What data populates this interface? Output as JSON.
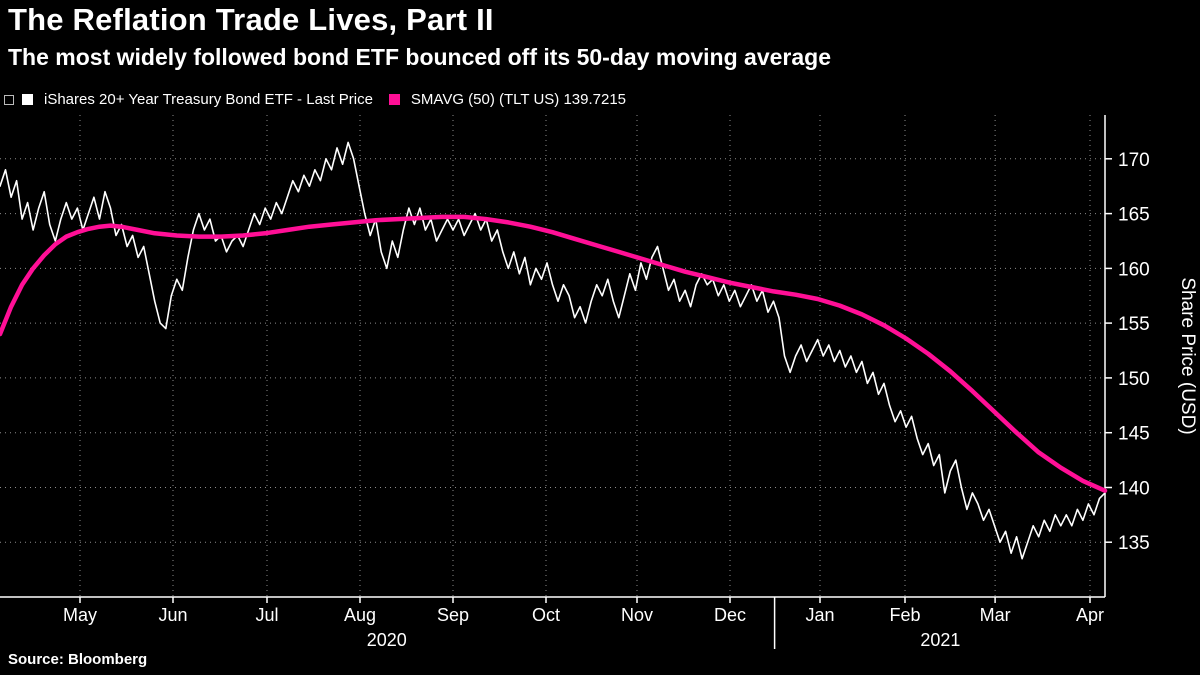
{
  "header": {
    "title": "The Reflation Trade Lives, Part II",
    "subtitle": "The most widely followed bond ETF bounced off its 50-day moving average"
  },
  "legend": {
    "price_label": "iShares 20+ Year Treasury Bond ETF - Last Price",
    "price_color": "#ffffff",
    "smavg_label": "SMAVG (50) (TLT US) 139.7215",
    "smavg_color": "#ff0f96"
  },
  "footer": {
    "source": "Source: Bloomberg"
  },
  "chart_data": {
    "type": "line",
    "title": "The Reflation Trade Lives, Part II",
    "subtitle": "The most widely followed bond ETF bounced off its 50-day moving average",
    "ylabel": "Share Price (USD)",
    "xlabel": "",
    "ylim": [
      130,
      174
    ],
    "yticks": [
      135,
      140,
      145,
      150,
      155,
      160,
      165,
      170
    ],
    "grid": "dotted",
    "legend_position": "top",
    "xticks": [
      {
        "label": "May",
        "f": 0.0724
      },
      {
        "label": "Jun",
        "f": 0.1566
      },
      {
        "label": "Jul",
        "f": 0.2416
      },
      {
        "label": "Aug",
        "f": 0.3258
      },
      {
        "label": "Sep",
        "f": 0.41
      },
      {
        "label": "Oct",
        "f": 0.4941
      },
      {
        "label": "Nov",
        "f": 0.5765
      },
      {
        "label": "Dec",
        "f": 0.6606
      },
      {
        "label": "Jan",
        "f": 0.7421
      },
      {
        "label": "Feb",
        "f": 0.819
      },
      {
        "label": "Mar",
        "f": 0.9005
      },
      {
        "label": "Apr",
        "f": 0.9864
      }
    ],
    "year_labels": [
      {
        "label": "2020",
        "f": 0.35
      },
      {
        "label": "2021",
        "f": 0.851
      }
    ],
    "year_dividers": [
      0.701
    ],
    "series": [
      {
        "id": "tlt-price",
        "name": "iShares 20+ Year Treasury Bond ETF - Last Price",
        "color": "#ffffff",
        "width": 1.6,
        "points": [
          [
            0.0,
            167.5
          ],
          [
            0.005,
            169.0
          ],
          [
            0.01,
            166.5
          ],
          [
            0.015,
            168.0
          ],
          [
            0.02,
            164.5
          ],
          [
            0.025,
            166.0
          ],
          [
            0.03,
            163.5
          ],
          [
            0.035,
            165.5
          ],
          [
            0.04,
            167.0
          ],
          [
            0.045,
            164.0
          ],
          [
            0.05,
            162.5
          ],
          [
            0.055,
            164.5
          ],
          [
            0.06,
            166.0
          ],
          [
            0.065,
            164.5
          ],
          [
            0.07,
            165.5
          ],
          [
            0.075,
            163.5
          ],
          [
            0.08,
            165.0
          ],
          [
            0.085,
            166.5
          ],
          [
            0.09,
            164.5
          ],
          [
            0.095,
            167.0
          ],
          [
            0.1,
            165.5
          ],
          [
            0.105,
            163.0
          ],
          [
            0.11,
            164.0
          ],
          [
            0.115,
            162.0
          ],
          [
            0.12,
            163.0
          ],
          [
            0.125,
            161.0
          ],
          [
            0.13,
            162.0
          ],
          [
            0.135,
            159.5
          ],
          [
            0.14,
            157.0
          ],
          [
            0.145,
            155.0
          ],
          [
            0.15,
            154.5
          ],
          [
            0.155,
            157.5
          ],
          [
            0.16,
            159.0
          ],
          [
            0.165,
            158.0
          ],
          [
            0.17,
            161.0
          ],
          [
            0.175,
            163.5
          ],
          [
            0.18,
            165.0
          ],
          [
            0.185,
            163.5
          ],
          [
            0.19,
            164.5
          ],
          [
            0.195,
            162.5
          ],
          [
            0.2,
            163.0
          ],
          [
            0.205,
            161.5
          ],
          [
            0.21,
            162.5
          ],
          [
            0.215,
            163.0
          ],
          [
            0.22,
            162.0
          ],
          [
            0.225,
            163.5
          ],
          [
            0.23,
            165.0
          ],
          [
            0.235,
            164.0
          ],
          [
            0.24,
            165.5
          ],
          [
            0.245,
            164.5
          ],
          [
            0.25,
            166.0
          ],
          [
            0.255,
            165.0
          ],
          [
            0.26,
            166.5
          ],
          [
            0.265,
            168.0
          ],
          [
            0.27,
            167.0
          ],
          [
            0.275,
            168.5
          ],
          [
            0.28,
            167.5
          ],
          [
            0.285,
            169.0
          ],
          [
            0.29,
            168.0
          ],
          [
            0.295,
            170.0
          ],
          [
            0.3,
            169.0
          ],
          [
            0.305,
            171.0
          ],
          [
            0.31,
            169.5
          ],
          [
            0.315,
            171.5
          ],
          [
            0.32,
            170.0
          ],
          [
            0.325,
            167.5
          ],
          [
            0.33,
            165.0
          ],
          [
            0.335,
            163.0
          ],
          [
            0.34,
            164.5
          ],
          [
            0.345,
            161.5
          ],
          [
            0.35,
            160.0
          ],
          [
            0.355,
            162.5
          ],
          [
            0.36,
            161.0
          ],
          [
            0.365,
            163.5
          ],
          [
            0.37,
            165.5
          ],
          [
            0.375,
            164.0
          ],
          [
            0.38,
            165.5
          ],
          [
            0.385,
            163.5
          ],
          [
            0.39,
            164.5
          ],
          [
            0.395,
            162.5
          ],
          [
            0.4,
            163.5
          ],
          [
            0.405,
            164.5
          ],
          [
            0.41,
            163.5
          ],
          [
            0.415,
            164.5
          ],
          [
            0.42,
            163.0
          ],
          [
            0.425,
            164.0
          ],
          [
            0.43,
            165.0
          ],
          [
            0.435,
            163.5
          ],
          [
            0.44,
            164.5
          ],
          [
            0.445,
            162.5
          ],
          [
            0.45,
            163.5
          ],
          [
            0.455,
            161.5
          ],
          [
            0.46,
            160.0
          ],
          [
            0.465,
            161.5
          ],
          [
            0.47,
            159.5
          ],
          [
            0.475,
            161.0
          ],
          [
            0.48,
            158.5
          ],
          [
            0.485,
            160.0
          ],
          [
            0.49,
            159.0
          ],
          [
            0.495,
            160.5
          ],
          [
            0.5,
            158.5
          ],
          [
            0.505,
            157.0
          ],
          [
            0.51,
            158.5
          ],
          [
            0.515,
            157.5
          ],
          [
            0.52,
            155.5
          ],
          [
            0.525,
            156.5
          ],
          [
            0.53,
            155.0
          ],
          [
            0.535,
            157.0
          ],
          [
            0.54,
            158.5
          ],
          [
            0.545,
            157.5
          ],
          [
            0.55,
            159.0
          ],
          [
            0.555,
            157.0
          ],
          [
            0.56,
            155.5
          ],
          [
            0.565,
            157.5
          ],
          [
            0.57,
            159.5
          ],
          [
            0.575,
            158.0
          ],
          [
            0.58,
            160.5
          ],
          [
            0.585,
            159.0
          ],
          [
            0.59,
            161.0
          ],
          [
            0.595,
            162.0
          ],
          [
            0.6,
            160.0
          ],
          [
            0.605,
            158.0
          ],
          [
            0.61,
            159.0
          ],
          [
            0.615,
            157.0
          ],
          [
            0.62,
            158.0
          ],
          [
            0.625,
            156.5
          ],
          [
            0.63,
            158.5
          ],
          [
            0.635,
            159.5
          ],
          [
            0.64,
            158.5
          ],
          [
            0.645,
            159.0
          ],
          [
            0.65,
            157.5
          ],
          [
            0.655,
            158.5
          ],
          [
            0.66,
            157.0
          ],
          [
            0.665,
            158.0
          ],
          [
            0.67,
            156.5
          ],
          [
            0.675,
            157.5
          ],
          [
            0.68,
            158.5
          ],
          [
            0.685,
            157.0
          ],
          [
            0.69,
            158.0
          ],
          [
            0.695,
            156.0
          ],
          [
            0.7,
            157.0
          ],
          [
            0.705,
            155.5
          ],
          [
            0.71,
            152.0
          ],
          [
            0.715,
            150.5
          ],
          [
            0.72,
            152.0
          ],
          [
            0.725,
            153.0
          ],
          [
            0.73,
            151.5
          ],
          [
            0.735,
            152.5
          ],
          [
            0.74,
            153.5
          ],
          [
            0.745,
            152.0
          ],
          [
            0.75,
            153.0
          ],
          [
            0.755,
            151.5
          ],
          [
            0.76,
            152.5
          ],
          [
            0.765,
            151.0
          ],
          [
            0.77,
            152.0
          ],
          [
            0.775,
            150.5
          ],
          [
            0.78,
            151.5
          ],
          [
            0.785,
            149.5
          ],
          [
            0.79,
            150.5
          ],
          [
            0.795,
            148.5
          ],
          [
            0.8,
            149.5
          ],
          [
            0.805,
            147.5
          ],
          [
            0.81,
            146.0
          ],
          [
            0.815,
            147.0
          ],
          [
            0.82,
            145.5
          ],
          [
            0.825,
            146.5
          ],
          [
            0.83,
            144.5
          ],
          [
            0.835,
            143.0
          ],
          [
            0.84,
            144.0
          ],
          [
            0.845,
            142.0
          ],
          [
            0.85,
            143.0
          ],
          [
            0.855,
            139.5
          ],
          [
            0.86,
            141.5
          ],
          [
            0.865,
            142.5
          ],
          [
            0.87,
            140.0
          ],
          [
            0.875,
            138.0
          ],
          [
            0.88,
            139.5
          ],
          [
            0.885,
            138.5
          ],
          [
            0.89,
            137.0
          ],
          [
            0.895,
            138.0
          ],
          [
            0.9,
            136.5
          ],
          [
            0.905,
            135.0
          ],
          [
            0.91,
            136.0
          ],
          [
            0.915,
            134.0
          ],
          [
            0.92,
            135.5
          ],
          [
            0.925,
            133.5
          ],
          [
            0.93,
            135.0
          ],
          [
            0.935,
            136.5
          ],
          [
            0.94,
            135.5
          ],
          [
            0.945,
            137.0
          ],
          [
            0.95,
            136.0
          ],
          [
            0.955,
            137.5
          ],
          [
            0.96,
            136.5
          ],
          [
            0.965,
            137.5
          ],
          [
            0.97,
            136.5
          ],
          [
            0.975,
            138.0
          ],
          [
            0.98,
            137.0
          ],
          [
            0.985,
            138.5
          ],
          [
            0.99,
            137.5
          ],
          [
            0.995,
            139.0
          ],
          [
            1.0,
            139.5
          ]
        ]
      },
      {
        "id": "smavg-50",
        "name": "SMAVG (50) (TLT US)",
        "last_value": 139.7215,
        "color": "#ff0f96",
        "width": 4.5,
        "points": [
          [
            0.0,
            154.0
          ],
          [
            0.01,
            156.5
          ],
          [
            0.02,
            158.5
          ],
          [
            0.03,
            160.0
          ],
          [
            0.04,
            161.2
          ],
          [
            0.05,
            162.2
          ],
          [
            0.06,
            162.9
          ],
          [
            0.07,
            163.3
          ],
          [
            0.08,
            163.6
          ],
          [
            0.09,
            163.8
          ],
          [
            0.1,
            163.9
          ],
          [
            0.11,
            163.8
          ],
          [
            0.125,
            163.5
          ],
          [
            0.14,
            163.2
          ],
          [
            0.16,
            163.0
          ],
          [
            0.18,
            162.9
          ],
          [
            0.2,
            162.9
          ],
          [
            0.22,
            163.0
          ],
          [
            0.24,
            163.2
          ],
          [
            0.26,
            163.5
          ],
          [
            0.28,
            163.8
          ],
          [
            0.3,
            164.0
          ],
          [
            0.32,
            164.2
          ],
          [
            0.34,
            164.4
          ],
          [
            0.36,
            164.5
          ],
          [
            0.38,
            164.6
          ],
          [
            0.4,
            164.7
          ],
          [
            0.42,
            164.7
          ],
          [
            0.44,
            164.5
          ],
          [
            0.46,
            164.2
          ],
          [
            0.48,
            163.8
          ],
          [
            0.5,
            163.3
          ],
          [
            0.52,
            162.7
          ],
          [
            0.54,
            162.1
          ],
          [
            0.56,
            161.5
          ],
          [
            0.58,
            160.9
          ],
          [
            0.6,
            160.3
          ],
          [
            0.62,
            159.7
          ],
          [
            0.64,
            159.2
          ],
          [
            0.66,
            158.7
          ],
          [
            0.68,
            158.3
          ],
          [
            0.7,
            157.9
          ],
          [
            0.72,
            157.6
          ],
          [
            0.74,
            157.2
          ],
          [
            0.76,
            156.6
          ],
          [
            0.78,
            155.8
          ],
          [
            0.8,
            154.8
          ],
          [
            0.82,
            153.6
          ],
          [
            0.84,
            152.2
          ],
          [
            0.86,
            150.6
          ],
          [
            0.88,
            148.8
          ],
          [
            0.9,
            146.9
          ],
          [
            0.92,
            145.0
          ],
          [
            0.94,
            143.2
          ],
          [
            0.96,
            141.8
          ],
          [
            0.98,
            140.6
          ],
          [
            1.0,
            139.7
          ]
        ]
      }
    ]
  }
}
